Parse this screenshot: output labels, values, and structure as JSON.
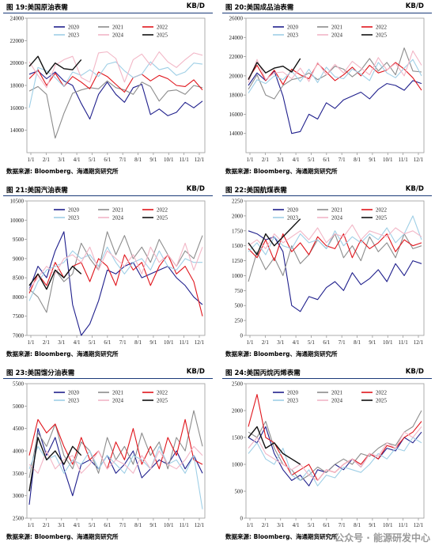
{
  "panels": [
    {
      "title": "图 19:美国原油表需",
      "unit": "KB/D",
      "source": "数据来源: Bloomberg、海通期货研究所"
    },
    {
      "title": "图 20:美国成品油表需",
      "unit": "KB/D",
      "source": "数据来源: Bloomberg、海通期货研究所"
    },
    {
      "title": "图 21:美国汽油表需",
      "unit": "KB/D",
      "source": "数据来源: Bloomberg、海通期货研究所"
    },
    {
      "title": "图 22:美国航煤表需",
      "unit": "KB/D",
      "source": "数据来源: Bloomberg、海通期货研究所"
    },
    {
      "title": "图 23:美国馏分油表需",
      "unit": "KB/D",
      "source": "数据来源: Bloomberg、海通期货研究所"
    },
    {
      "title": "图 24:美国丙烷丙烯表需",
      "unit": "KB/D",
      "source": "数据来源: Bloomberg、海通期货研究所"
    }
  ],
  "watermark": "公众号 · 能源研发中心",
  "chart_data": [
    {
      "type": "line",
      "title": "图 19:美国原油表需",
      "ylim": [
        12000,
        24000
      ],
      "yticks": [
        14000,
        16000,
        18000,
        20000,
        22000,
        24000
      ],
      "x_ticks": [
        "1/1",
        "2/1",
        "3/1",
        "4/1",
        "5/1",
        "6/1",
        "7/1",
        "8/1",
        "9/1",
        "10/1",
        "11/1",
        "12/1"
      ],
      "series": [
        {
          "name": "2020",
          "color": "#1f1f8c",
          "values": [
            19000,
            19300,
            18600,
            19200,
            18400,
            18000,
            16400,
            15000,
            17200,
            18300,
            17200,
            16500,
            17800,
            18100,
            15400,
            15900,
            15300,
            15600,
            16500,
            16000,
            16600
          ]
        },
        {
          "name": "2021",
          "color": "#8c8c8c",
          "values": [
            17500,
            17900,
            17200,
            13300,
            15500,
            17300,
            17600,
            17800,
            17700,
            18400,
            17800,
            17600,
            17200,
            18300,
            17900,
            16600,
            17500,
            17600,
            17200,
            18000,
            17800
          ]
        },
        {
          "name": "2022",
          "color": "#e0151c",
          "values": [
            18600,
            19400,
            18000,
            19100,
            17900,
            18800,
            18300,
            17700,
            19200,
            18800,
            18100,
            17400,
            18700,
            19000,
            18400,
            18900,
            18600,
            18000,
            17900,
            18500,
            17600
          ]
        },
        {
          "name": "2023",
          "color": "#9fcfe6",
          "values": [
            16000,
            19600,
            19300,
            18700,
            17900,
            19200,
            18900,
            19400,
            18800,
            19900,
            20100,
            19300,
            18700,
            19000,
            20100,
            19400,
            19600,
            18900,
            19200,
            20000,
            19900
          ]
        },
        {
          "name": "2024",
          "color": "#f2b6c6",
          "values": [
            20100,
            18900,
            17800,
            19800,
            20300,
            20600,
            18700,
            18300,
            20900,
            21000,
            20400,
            18300,
            20300,
            20800,
            19800,
            21000,
            20100,
            19600,
            20300,
            20900,
            20700
          ]
        },
        {
          "name": "2025",
          "color": "#111111",
          "values": [
            19700,
            20600,
            19000,
            20000,
            19500,
            19400,
            20300
          ]
        }
      ]
    },
    {
      "type": "line",
      "title": "图 20:美国成品油表需",
      "ylim": [
        12000,
        26000
      ],
      "yticks": [
        14000,
        16000,
        18000,
        20000,
        22000,
        24000,
        26000
      ],
      "x_ticks": [
        "1/1",
        "2/1",
        "3/1",
        "4/1",
        "5/1",
        "6/1",
        "7/1",
        "8/1",
        "9/1",
        "10/1",
        "11/1",
        "12/1"
      ],
      "series": [
        {
          "name": "2020",
          "color": "#1f1f8c",
          "values": [
            19000,
            20300,
            19500,
            20500,
            17900,
            14000,
            14200,
            16000,
            15500,
            17200,
            16600,
            17500,
            17900,
            18300,
            17600,
            18600,
            19200,
            19000,
            18500,
            19500,
            19200
          ]
        },
        {
          "name": "2021",
          "color": "#8c8c8c",
          "values": [
            18600,
            20100,
            18000,
            17600,
            19000,
            19600,
            19800,
            20300,
            19600,
            20100,
            21000,
            20700,
            19900,
            20600,
            21800,
            20500,
            21400,
            20100,
            22900,
            20500,
            20400
          ]
        },
        {
          "name": "2022",
          "color": "#e0151c",
          "values": [
            19700,
            21100,
            19500,
            20600,
            19100,
            20700,
            20100,
            19700,
            21300,
            20400,
            19500,
            20100,
            20900,
            20000,
            21100,
            20300,
            20600,
            21400,
            20700,
            19800,
            18500
          ]
        },
        {
          "name": "2023",
          "color": "#9fcfe6",
          "values": [
            18200,
            19600,
            19200,
            20000,
            19600,
            20500,
            19400,
            20700,
            19300,
            20900,
            19900,
            19700,
            20700,
            20200,
            19500,
            21400,
            20300,
            19800,
            20800,
            21700,
            20000
          ]
        },
        {
          "name": "2024",
          "color": "#f2b6c6",
          "values": [
            19300,
            21700,
            19600,
            20300,
            20400,
            19700,
            20800,
            19400,
            21400,
            20100,
            21200,
            20300,
            21500,
            20800,
            20100,
            21900,
            20600,
            21300,
            20000,
            22600,
            21100
          ]
        },
        {
          "name": "2025",
          "color": "#111111",
          "values": [
            19600,
            21400,
            20300,
            20800,
            21000,
            20400,
            21800
          ]
        }
      ]
    },
    {
      "type": "line",
      "title": "图 21:美国汽油表需",
      "ylim": [
        7000,
        10500
      ],
      "yticks": [
        7000,
        7500,
        8000,
        8500,
        9000,
        9500,
        10000,
        10500
      ],
      "x_ticks": [
        "1/1",
        "2/1",
        "3/1",
        "4/1",
        "5/1",
        "6/1",
        "7/1",
        "8/1",
        "9/1",
        "10/1",
        "11/1",
        "12/1"
      ],
      "series": [
        {
          "name": "2020",
          "color": "#1f1f8c",
          "values": [
            8200,
            8800,
            8500,
            9200,
            9700,
            7800,
            7000,
            7300,
            7900,
            8700,
            8600,
            8800,
            8900,
            8500,
            8600,
            8700,
            8800,
            8500,
            8300,
            8000,
            7800
          ]
        },
        {
          "name": "2021",
          "color": "#8c8c8c",
          "values": [
            8200,
            8000,
            7600,
            8700,
            8400,
            8600,
            9400,
            9000,
            8700,
            9700,
            9100,
            9600,
            9000,
            9300,
            8900,
            9500,
            9100,
            8800,
            9200,
            9000,
            9600
          ]
        },
        {
          "name": "2022",
          "color": "#e0151c",
          "values": [
            8100,
            8600,
            8300,
            8900,
            8500,
            8800,
            8900,
            8400,
            9000,
            8800,
            8300,
            9100,
            8700,
            8900,
            8300,
            8800,
            9100,
            8600,
            8800,
            8400,
            7500
          ]
        },
        {
          "name": "2023",
          "color": "#9fcfe6",
          "values": [
            7900,
            8400,
            8700,
            8800,
            8900,
            9200,
            9000,
            9100,
            8800,
            9300,
            8900,
            8600,
            8900,
            9000,
            8700,
            9200,
            8800,
            8700,
            9000,
            8900,
            8900
          ]
        },
        {
          "name": "2024",
          "color": "#f2b6c6",
          "values": [
            8200,
            8500,
            8800,
            8600,
            9000,
            9100,
            8900,
            9300,
            8700,
            9200,
            9000,
            8800,
            9100,
            8600,
            9300,
            8900,
            9100,
            8800,
            9400,
            8700,
            9300
          ]
        },
        {
          "name": "2025",
          "color": "#111111",
          "values": [
            8300,
            8600,
            8200,
            8700,
            8500,
            8800,
            8600
          ]
        }
      ]
    },
    {
      "type": "line",
      "title": "图 22:美国航煤表需",
      "ylim": [
        0,
        2250
      ],
      "yticks": [
        0,
        250,
        500,
        750,
        1000,
        1250,
        1500,
        1750,
        2000,
        2250
      ],
      "x_ticks": [
        "1/1",
        "2/1",
        "3/1",
        "4/1",
        "5/1",
        "6/1",
        "7/1",
        "8/1",
        "9/1",
        "10/1",
        "11/1",
        "12/1"
      ],
      "series": [
        {
          "name": "2020",
          "color": "#1f1f8c",
          "values": [
            1750,
            1700,
            1600,
            1650,
            1400,
            500,
            400,
            650,
            600,
            800,
            900,
            750,
            1050,
            850,
            950,
            1100,
            900,
            1200,
            1000,
            1250,
            1200
          ]
        },
        {
          "name": "2021",
          "color": "#8c8c8c",
          "values": [
            900,
            1400,
            1100,
            1300,
            1000,
            1500,
            1200,
            1350,
            1600,
            1450,
            1700,
            1300,
            1500,
            1250,
            1650,
            1400,
            1550,
            1300,
            1700,
            1450,
            1500
          ]
        },
        {
          "name": "2022",
          "color": "#e0151c",
          "values": [
            1450,
            1300,
            1600,
            1250,
            1700,
            1400,
            1550,
            1350,
            1650,
            1500,
            1450,
            1700,
            1300,
            1600,
            1450,
            1550,
            1700,
            1400,
            1600,
            1500,
            1550
          ]
        },
        {
          "name": "2023",
          "color": "#9fcfe6",
          "values": [
            1400,
            1550,
            1350,
            1650,
            1500,
            1450,
            1700,
            1550,
            1600,
            1450,
            1750,
            1500,
            1650,
            1550,
            1700,
            1600,
            1800,
            1550,
            1700,
            2000,
            1600
          ]
        },
        {
          "name": "2024",
          "color": "#f2b6c6",
          "values": [
            1500,
            1600,
            1450,
            1700,
            1550,
            1650,
            1750,
            1600,
            1800,
            1550,
            1700,
            1650,
            1850,
            1600,
            1750,
            1700,
            1650,
            1800,
            1700,
            1750,
            1650
          ]
        },
        {
          "name": "2025",
          "color": "#111111",
          "values": [
            1550,
            1350,
            1700,
            1500,
            1650,
            1800,
            1950
          ]
        }
      ]
    },
    {
      "type": "line",
      "title": "图 23:美国馏分油表需",
      "ylim": [
        2500,
        5500
      ],
      "yticks": [
        2500,
        3000,
        3500,
        4000,
        4500,
        5000,
        5500
      ],
      "x_ticks": [
        "1/1",
        "2/1",
        "3/1",
        "4/1",
        "5/1",
        "6/1",
        "7/1",
        "8/1",
        "9/1",
        "10/1",
        "11/1",
        "12/1"
      ],
      "series": [
        {
          "name": "2020",
          "color": "#1f1f8c",
          "values": [
            2800,
            4500,
            3900,
            4300,
            3600,
            3000,
            3700,
            3800,
            3600,
            3900,
            3500,
            3700,
            4000,
            3400,
            3600,
            3800,
            3700,
            4000,
            3600,
            3900,
            3500
          ]
        },
        {
          "name": "2021",
          "color": "#8c8c8c",
          "values": [
            3400,
            4400,
            4100,
            4600,
            3900,
            3600,
            4200,
            4000,
            3500,
            4300,
            3800,
            4100,
            3700,
            4400,
            3900,
            4200,
            3600,
            4300,
            4000,
            4900,
            4100
          ]
        },
        {
          "name": "2022",
          "color": "#e0151c",
          "values": [
            3900,
            4700,
            4400,
            4600,
            4100,
            3700,
            4300,
            3800,
            4000,
            3600,
            4200,
            3800,
            4500,
            3700,
            4100,
            3600,
            4300,
            3900,
            4700,
            3800,
            3700
          ]
        },
        {
          "name": "2023",
          "color": "#9fcfe6",
          "values": [
            3600,
            4100,
            3800,
            3900,
            3500,
            3800,
            3700,
            4000,
            3600,
            3900,
            3700,
            3500,
            3900,
            3800,
            3600,
            4100,
            3700,
            3800,
            3500,
            3900,
            2700
          ]
        },
        {
          "name": "2024",
          "color": "#f2b6c6",
          "values": [
            3700,
            3500,
            4000,
            3600,
            3800,
            3900,
            3500,
            3700,
            4000,
            3600,
            3800,
            3700,
            3500,
            3900,
            3600,
            4000,
            3700,
            3600,
            3800,
            4100,
            3900
          ]
        },
        {
          "name": "2025",
          "color": "#111111",
          "values": [
            3100,
            4300,
            3800,
            4000,
            3700,
            4100,
            3900
          ]
        }
      ]
    },
    {
      "type": "line",
      "title": "图 24:美国丙烷丙烯表需",
      "ylim": [
        0,
        2500
      ],
      "yticks": [
        0,
        500,
        1000,
        1500,
        2000,
        2500
      ],
      "x_ticks": [
        "1/1",
        "2/1",
        "3/1",
        "4/1",
        "5/1",
        "6/1",
        "7/1",
        "8/1",
        "9/1",
        "10/1",
        "11/1",
        "12/1"
      ],
      "series": [
        {
          "name": "2020",
          "color": "#1f1f8c",
          "values": [
            1500,
            1400,
            1700,
            1200,
            900,
            700,
            800,
            600,
            900,
            850,
            1000,
            900,
            1100,
            950,
            1200,
            1100,
            1300,
            1250,
            1500,
            1400,
            1600
          ]
        },
        {
          "name": "2021",
          "color": "#8c8c8c",
          "values": [
            1600,
            1500,
            1800,
            1300,
            1000,
            900,
            700,
            800,
            950,
            850,
            1000,
            1100,
            1000,
            1200,
            1150,
            1300,
            1400,
            1350,
            1600,
            1700,
            2000
          ]
        },
        {
          "name": "2022",
          "color": "#e0151c",
          "values": [
            1700,
            2300,
            1500,
            1400,
            1100,
            800,
            900,
            1000,
            700,
            900,
            850,
            1000,
            1100,
            1000,
            1200,
            1100,
            1350,
            1300,
            1500,
            1600,
            1800
          ]
        },
        {
          "name": "2023",
          "color": "#9fcfe6",
          "values": [
            1200,
            1400,
            1100,
            1000,
            1300,
            800,
            700,
            900,
            600,
            800,
            750,
            950,
            900,
            850,
            1000,
            1200,
            1100,
            1300,
            1250,
            1500,
            1400
          ]
        },
        {
          "name": "2024",
          "color": "#f2b6c6",
          "values": [
            1300,
            1500,
            1200,
            1100,
            1000,
            900,
            1000,
            800,
            700,
            900,
            850,
            1000,
            1100,
            950,
            1200,
            1150,
            1400,
            1300,
            1600,
            1500,
            1700
          ]
        },
        {
          "name": "2025",
          "color": "#111111",
          "values": [
            1500,
            1700,
            1300,
            1400,
            1200,
            1100,
            1000
          ]
        }
      ]
    }
  ]
}
